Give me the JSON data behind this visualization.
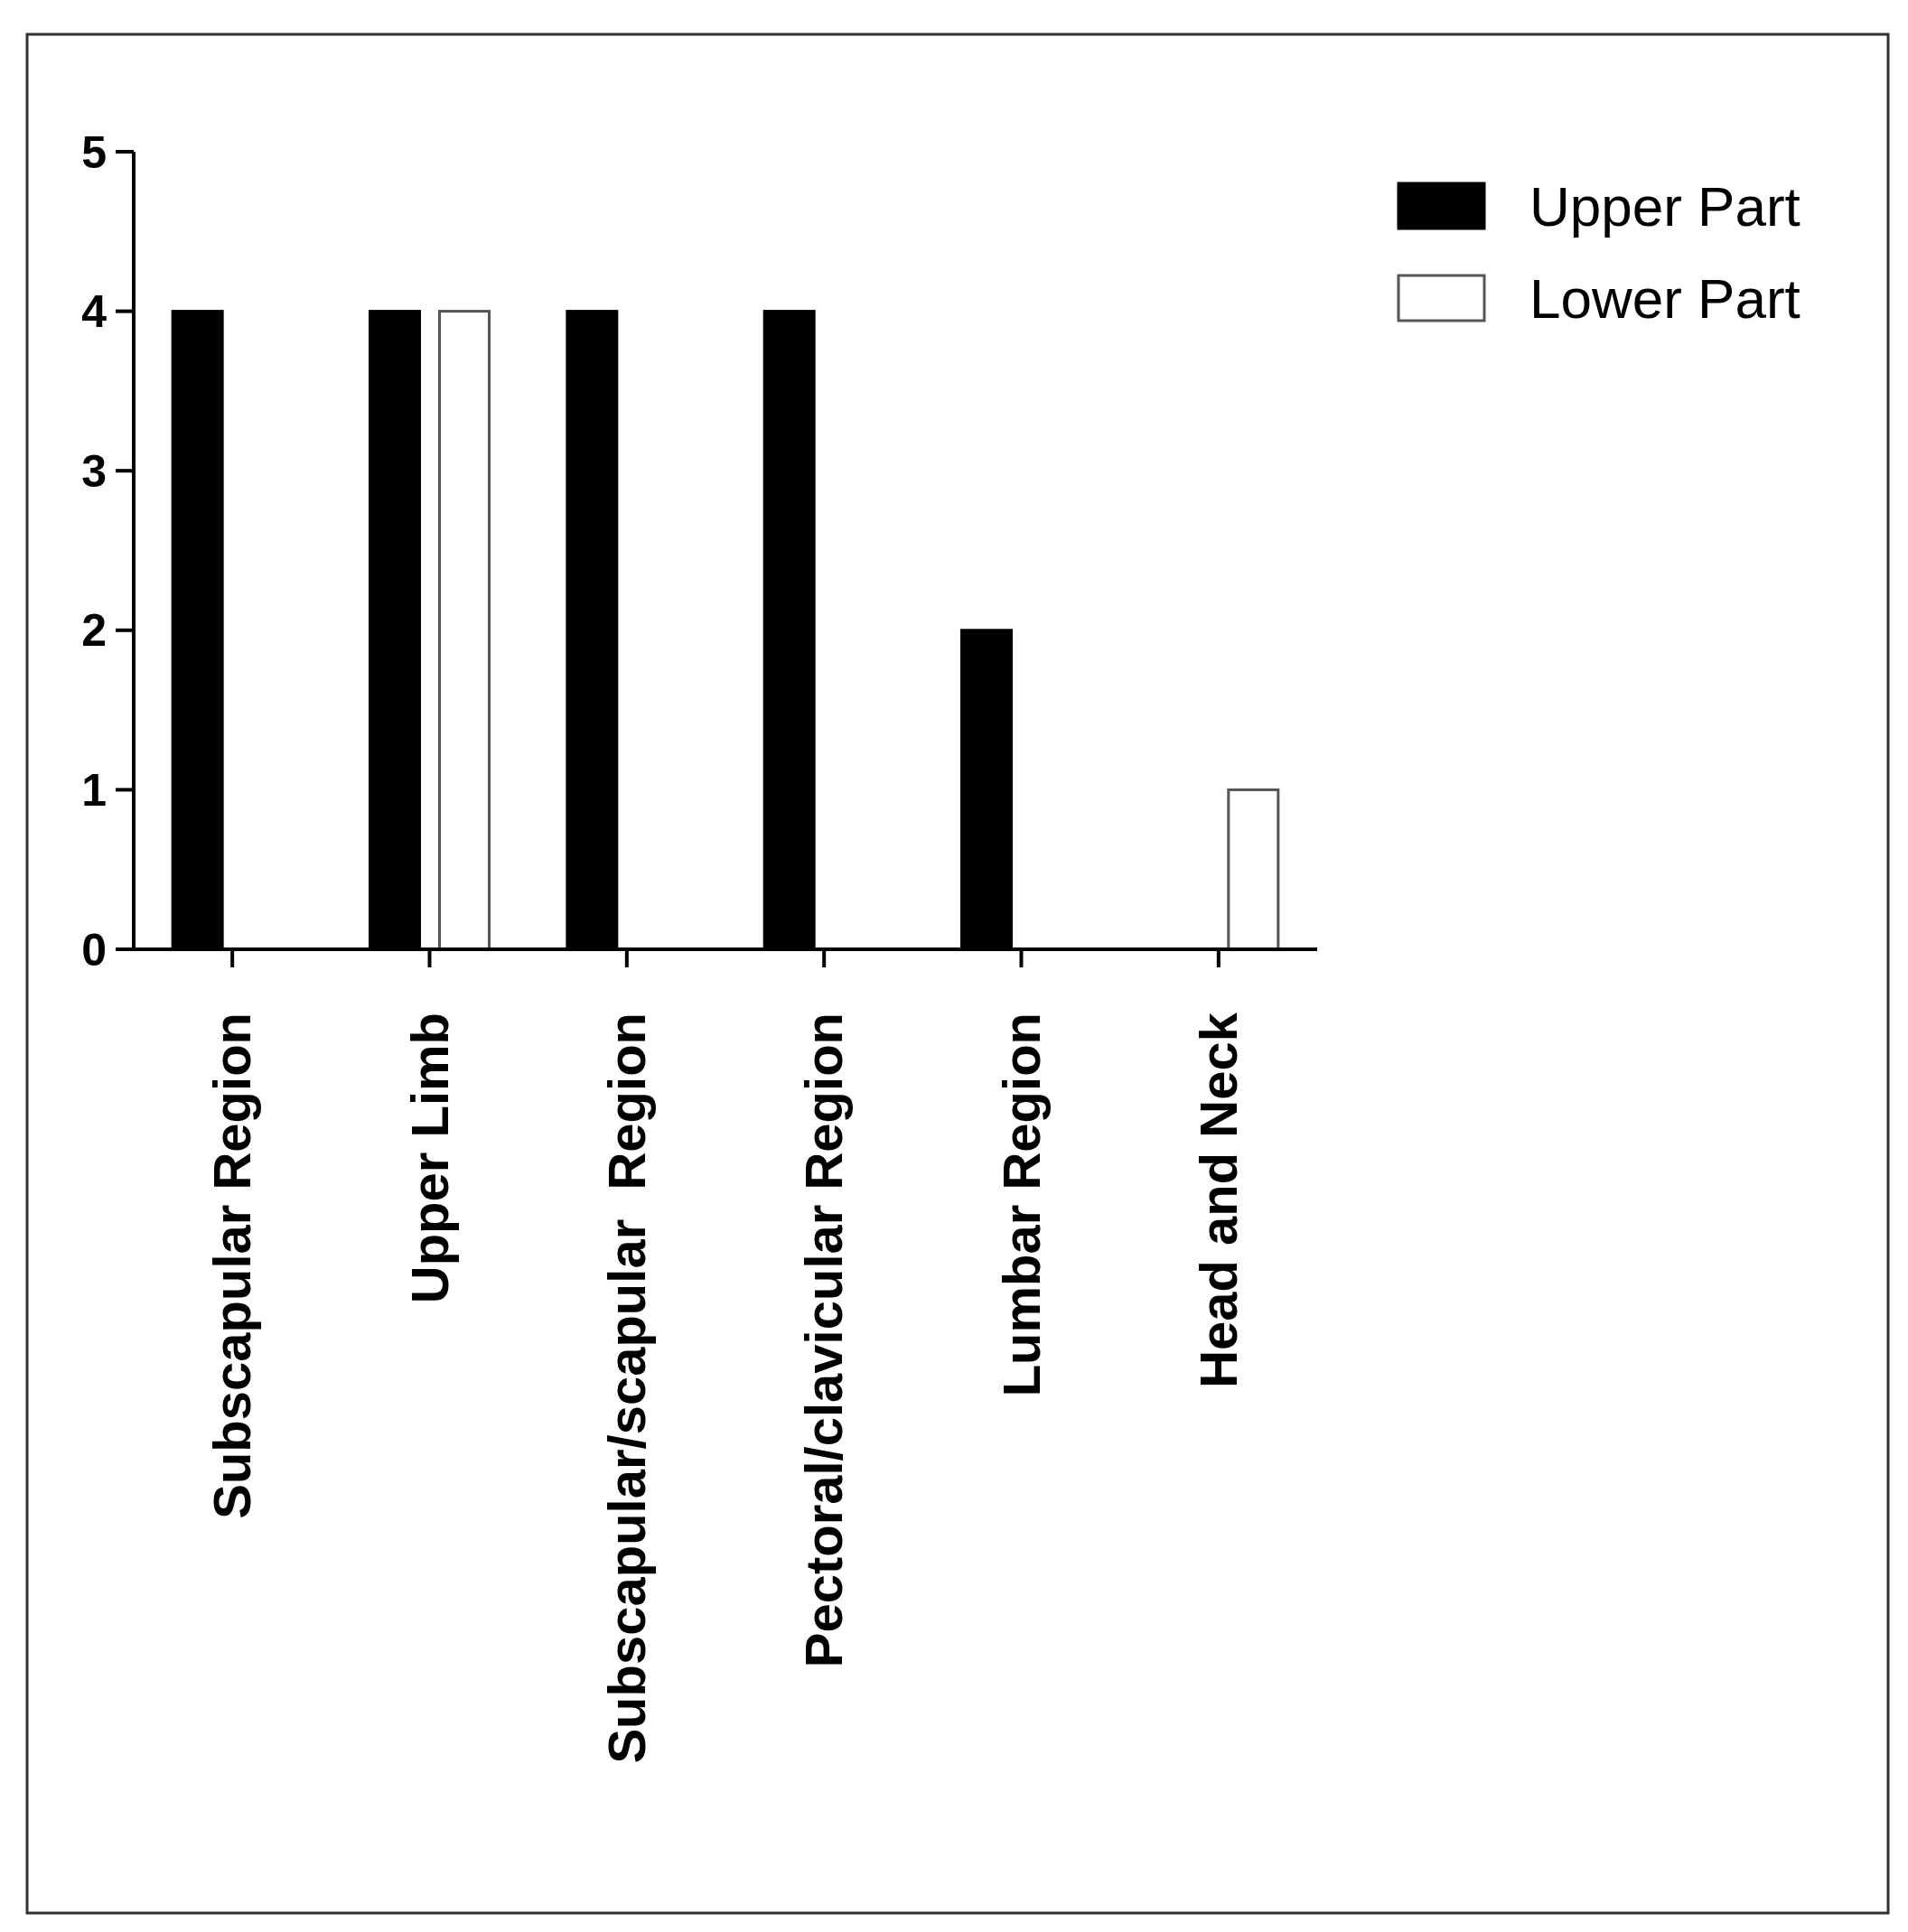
{
  "chart_data": {
    "type": "bar",
    "categories": [
      "Subscapular Region",
      "Upper Limb",
      "Subscapular/scapular  Region",
      "Pectoral/clavicular Region",
      "Lumbar Region",
      "Head and Neck"
    ],
    "series": [
      {
        "name": "Upper Part",
        "color": "#000000",
        "values": [
          4,
          4,
          4,
          4,
          2,
          0
        ]
      },
      {
        "name": "Lower Part",
        "color": "#ffffff",
        "values": [
          null,
          4,
          null,
          null,
          null,
          1
        ]
      }
    ],
    "ylim": [
      0,
      5
    ],
    "yticks": [
      0,
      1,
      2,
      3,
      4,
      5
    ],
    "legend": "top right",
    "grid": false
  }
}
